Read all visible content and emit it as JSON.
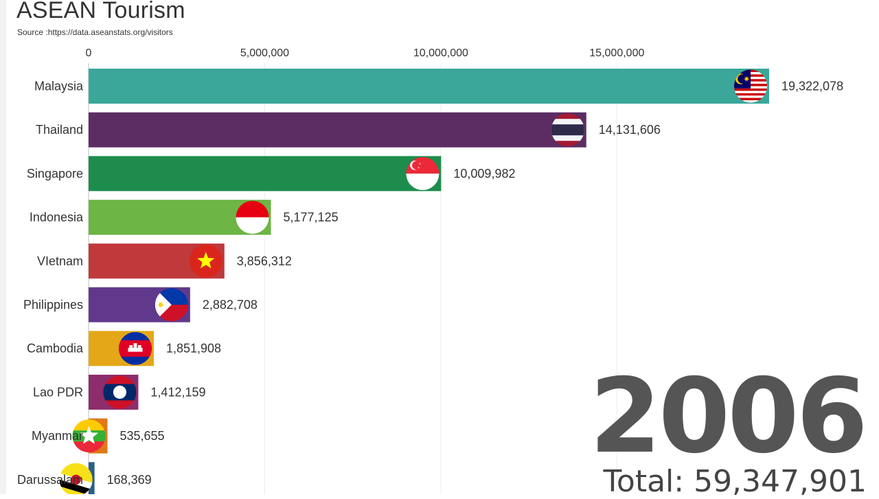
{
  "chart_data": {
    "type": "bar",
    "orientation": "horizontal",
    "title": "ASEAN Tourism",
    "subtitle": "Source :https://data.aseanstats.org/visitors",
    "categories": [
      "Malaysia",
      "Thailand",
      "Singapore",
      "Indonesia",
      "VIetnam",
      "Philippines",
      "Cambodia",
      "Lao PDR",
      "Myanmar",
      "Darussalam"
    ],
    "values": [
      19322078,
      14131606,
      10009982,
      5177125,
      3856312,
      2882708,
      1851908,
      1412159,
      535655,
      168369
    ],
    "value_labels": [
      "19,322,078",
      "14,131,606",
      "10,009,982",
      "5,177,125",
      "3,856,312",
      "2,882,708",
      "1,851,908",
      "1,412,159",
      "535,655",
      "168,369"
    ],
    "colors": [
      "#3aa79a",
      "#5c2d63",
      "#1d8c4c",
      "#6db545",
      "#c0393b",
      "#60398c",
      "#e4a718",
      "#8e2d6b",
      "#e0781a",
      "#2b5f8a"
    ],
    "flag_icons": [
      "malaysia-flag-icon",
      "thailand-flag-icon",
      "singapore-flag-icon",
      "indonesia-flag-icon",
      "vietnam-flag-icon",
      "philippines-flag-icon",
      "cambodia-flag-icon",
      "laos-flag-icon",
      "myanmar-flag-icon",
      "brunei-flag-icon"
    ],
    "xticks": [
      0,
      5000000,
      10000000,
      15000000
    ],
    "xtick_labels": [
      "0",
      "5,000,000",
      "10,000,000",
      "15,000,000"
    ],
    "xlim": [
      0,
      19322078
    ],
    "xaxis_position": "top",
    "grid": true
  },
  "year": "2006",
  "total_label": "Total: 59,347,901"
}
